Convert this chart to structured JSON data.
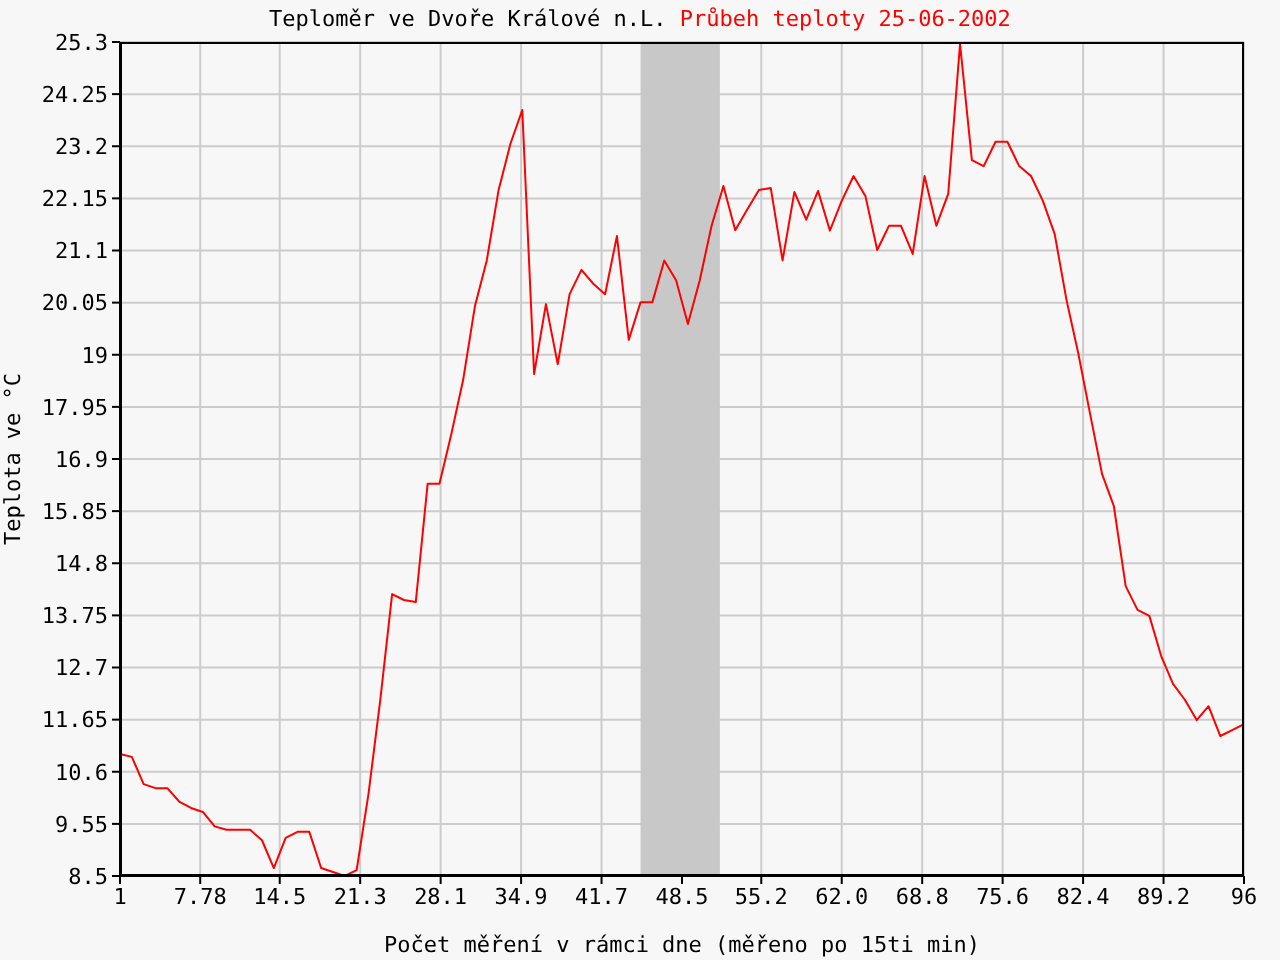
{
  "chart_data": {
    "type": "line",
    "title": "Teploměr ve Dvoře Králové n.L.",
    "subtitle": "Průbeh teploty 25-06-2002",
    "xlabel": "Počet měření v rámci dne (měřeno po 15ti min)",
    "ylabel": "Teplota ve °C",
    "x": [
      1,
      2,
      3,
      4,
      5,
      6,
      7,
      8,
      9,
      10,
      11,
      12,
      13,
      14,
      15,
      16,
      17,
      18,
      19,
      20,
      21,
      22,
      23,
      24,
      25,
      26,
      27,
      28,
      29,
      30,
      31,
      32,
      33,
      34,
      35,
      36,
      37,
      38,
      39,
      40,
      41,
      42,
      43,
      44,
      45,
      46,
      47,
      48,
      49,
      50,
      51,
      52,
      53,
      54,
      55,
      56,
      57,
      58,
      59,
      60,
      61,
      62,
      63,
      64,
      65,
      66,
      67,
      68,
      69,
      70,
      71,
      72,
      73,
      74,
      75,
      76,
      77,
      78,
      79,
      80,
      81,
      82,
      83,
      84,
      85,
      86,
      87,
      88,
      89,
      90,
      91,
      92,
      93,
      94,
      95,
      96
    ],
    "series": [
      {
        "color": "#ff0000",
        "values": [
          10.96,
          10.9,
          10.35,
          10.27,
          10.27,
          10.0,
          9.87,
          9.79,
          9.5,
          9.43,
          9.43,
          9.43,
          9.22,
          8.66,
          9.27,
          9.39,
          9.39,
          8.66,
          8.58,
          8.5,
          8.62,
          10.15,
          12.05,
          14.18,
          14.06,
          14.02,
          16.4,
          16.4,
          17.4,
          18.49,
          19.98,
          20.9,
          22.32,
          23.25,
          23.93,
          18.61,
          20.02,
          18.81,
          20.22,
          20.71,
          20.43,
          20.22,
          21.39,
          19.3,
          20.06,
          20.06,
          20.9,
          20.5,
          19.62,
          20.5,
          21.6,
          22.4,
          21.51,
          21.92,
          22.32,
          22.36,
          20.9,
          22.28,
          21.72,
          22.3,
          21.5,
          22.1,
          22.6,
          22.2,
          21.11,
          21.6,
          21.6,
          21.03,
          22.6,
          21.6,
          22.24,
          25.26,
          22.92,
          22.8,
          23.29,
          23.29,
          22.8,
          22.6,
          22.1,
          21.43,
          20.1,
          19.02,
          17.8,
          16.6,
          15.95,
          14.34,
          13.86,
          13.74,
          12.93,
          12.37,
          12.05,
          11.64,
          11.92,
          11.32,
          11.44,
          11.56
        ]
      }
    ],
    "xlim": [
      1,
      96
    ],
    "xticks": [
      1,
      7.78,
      14.5,
      21.3,
      28.1,
      34.9,
      41.7,
      48.5,
      55.2,
      {
        "value": 62,
        "label": "62.0"
      },
      68.8,
      75.6,
      82.4,
      89.2,
      96
    ],
    "ylim": [
      8.5,
      25.3
    ],
    "yticks": [
      8.5,
      9.55,
      10.6,
      11.65,
      12.7,
      13.75,
      14.8,
      15.85,
      16.9,
      17.95,
      19,
      20.05,
      21.1,
      22.15,
      23.2,
      24.25,
      25.3
    ],
    "bands": [
      {
        "axis": "x",
        "from": 45,
        "to": 51.7,
        "color": "#c8c8c8"
      }
    ],
    "grid": true,
    "legend": false,
    "marker": "none",
    "line_style": "solid"
  }
}
